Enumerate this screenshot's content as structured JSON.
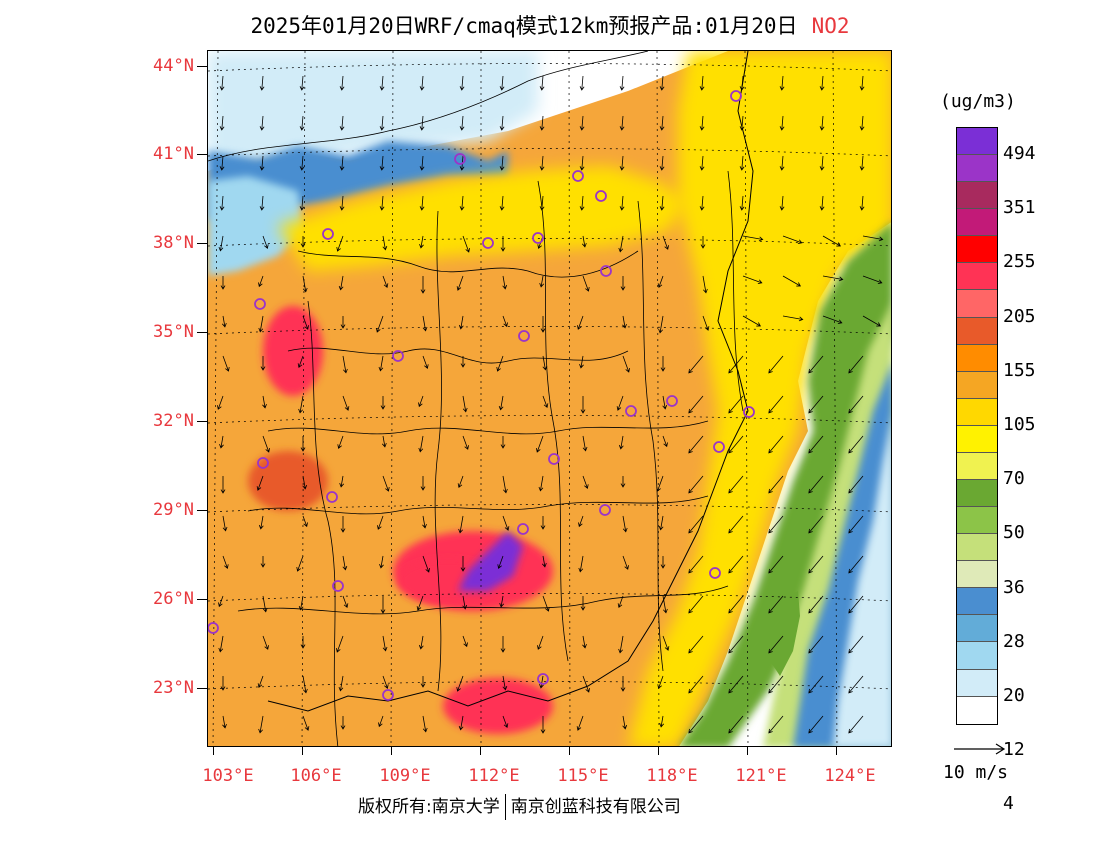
{
  "title": {
    "main": "2025年01月20日WRF/cmaq模式12km预报产品:01月20日",
    "pollutant": "NO2"
  },
  "axes": {
    "lat_labels": [
      "44°N",
      "41°N",
      "38°N",
      "35°N",
      "32°N",
      "29°N",
      "26°N",
      "23°N"
    ],
    "lon_labels": [
      "103°E",
      "106°E",
      "109°E",
      "112°E",
      "115°E",
      "118°E",
      "121°E",
      "124°E"
    ]
  },
  "legend": {
    "unit": "(ug/m3)",
    "labels": [
      "494",
      "351",
      "255",
      "205",
      "155",
      "105",
      "70",
      "50",
      "36",
      "28",
      "20",
      "12",
      "4"
    ],
    "colors": [
      "#7b2fd6",
      "#9b34c8",
      "#a82a5e",
      "#c21a78",
      "#ff0000",
      "#ff3355",
      "#ff6666",
      "#e85a2a",
      "#ff8c00",
      "#f5a623",
      "#ffd800",
      "#fff200",
      "#f0f250",
      "#6aa832",
      "#8cc448",
      "#c5e07a",
      "#dfeab8",
      "#4a8ed0",
      "#62acd8",
      "#a0d8f0",
      "#d2ecf8",
      "#ffffff"
    ]
  },
  "wind_reference": {
    "label": "10 m/s"
  },
  "footer": {
    "left": "版权所有:南京大学",
    "right": "南京创蓝科技有限公司"
  },
  "map_colors": {
    "land_base": "#f5a63a",
    "land_yellow": "#ffe000",
    "light_yellow": "#f2f050",
    "green": "#6aa832",
    "light_green": "#c5e07a",
    "blue": "#4a8ed0",
    "light_blue": "#a0d8f0",
    "pale_blue": "#d2ecf8",
    "red": "#ff3355",
    "dark_red": "#e85a2a",
    "purple": "#7b2fd6",
    "sea": "#ffffff",
    "city_marker": "#9b34c8"
  }
}
